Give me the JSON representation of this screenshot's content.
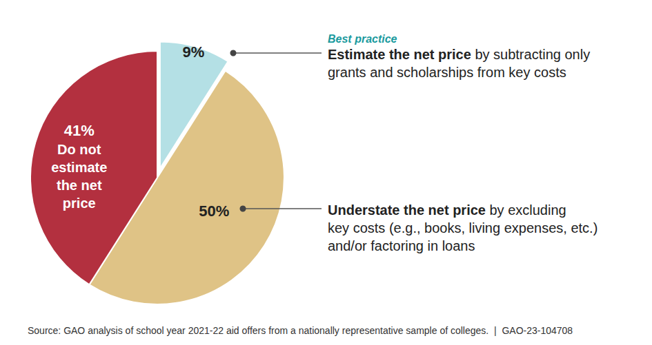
{
  "chart_data": {
    "type": "pie",
    "values": [
      9,
      50,
      41
    ],
    "value_labels": [
      "9%",
      "50%",
      "41%"
    ],
    "colors": [
      "#b4e0e5",
      "#dfc386",
      "#b3303f"
    ],
    "data_labels": true,
    "annotations": [
      {
        "slice": 0,
        "heading": "Best practice",
        "bold": "Estimate the net price",
        "lines": [
          "by subtracting only",
          "grants and scholarships from key costs"
        ]
      },
      {
        "slice": 1,
        "bold": "Understate the net price",
        "lines": [
          "by excluding",
          "key costs (e.g., books, living expenses, etc.)",
          "and/or factoring in loans"
        ]
      },
      {
        "slice": 2,
        "inside": [
          "Do not",
          "estimate",
          "the net",
          "price"
        ]
      }
    ],
    "source": "Source: GAO analysis of school year 2021-22 aid offers from a nationally representative sample of colleges.  |  GAO-23-104708"
  }
}
